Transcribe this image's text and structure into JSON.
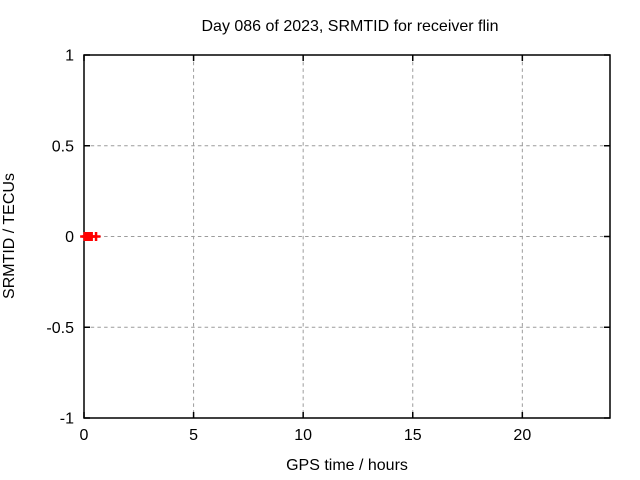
{
  "window": {
    "background": "#ffffff"
  },
  "chart_data": {
    "type": "scatter",
    "title": "Day 086 of 2023, SRMTID for receiver flin",
    "xlabel": "GPS time / hours",
    "ylabel": "SRMTID / TECUs",
    "xlim": [
      0,
      24
    ],
    "ylim": [
      -1,
      1
    ],
    "x_tick_values": [
      0,
      5,
      10,
      15,
      20
    ],
    "x_tick_labels": [
      "0",
      "5",
      "10",
      "15",
      "20"
    ],
    "y_tick_values": [
      -1,
      -0.5,
      0,
      0.5,
      1
    ],
    "y_tick_labels": [
      "-1",
      "-0.5",
      "0",
      "0.5",
      "1"
    ],
    "grid": true,
    "legend": "none",
    "series": [
      {
        "marker": "plus",
        "color": "#ff0000",
        "points": [
          {
            "x": 0.03,
            "y": 0
          },
          {
            "x": 0.12,
            "y": 0
          },
          {
            "x": 0.2,
            "y": 0
          },
          {
            "x": 0.28,
            "y": 0
          },
          {
            "x": 0.35,
            "y": 0
          },
          {
            "x": 0.55,
            "y": 0
          }
        ]
      }
    ],
    "colors": {
      "axis": "#000000",
      "grid": "#9c9c9c",
      "text": "#000000"
    }
  }
}
